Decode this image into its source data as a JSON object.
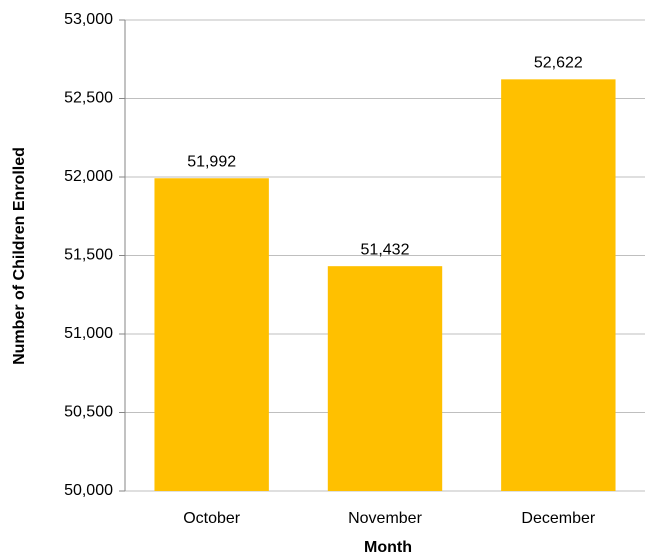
{
  "chart_data": {
    "type": "bar",
    "x_label": "Month",
    "y_label": "Number of Children Enrolled",
    "categories": [
      "October",
      "November",
      "December"
    ],
    "values": [
      51992,
      51432,
      52622
    ],
    "value_labels": [
      "51,992",
      "51,432",
      "52,622"
    ],
    "color": "#ffc000",
    "ylim": [
      50000,
      53000
    ],
    "yticks": [
      {
        "value": 50000,
        "label": "50,000"
      },
      {
        "value": 50500,
        "label": "50,500"
      },
      {
        "value": 51000,
        "label": "51,000"
      },
      {
        "value": 51500,
        "label": "51,500"
      },
      {
        "value": 52000,
        "label": "52,000"
      },
      {
        "value": 52500,
        "label": "52,500"
      },
      {
        "value": 53000,
        "label": "53,000"
      }
    ],
    "grid": true
  }
}
